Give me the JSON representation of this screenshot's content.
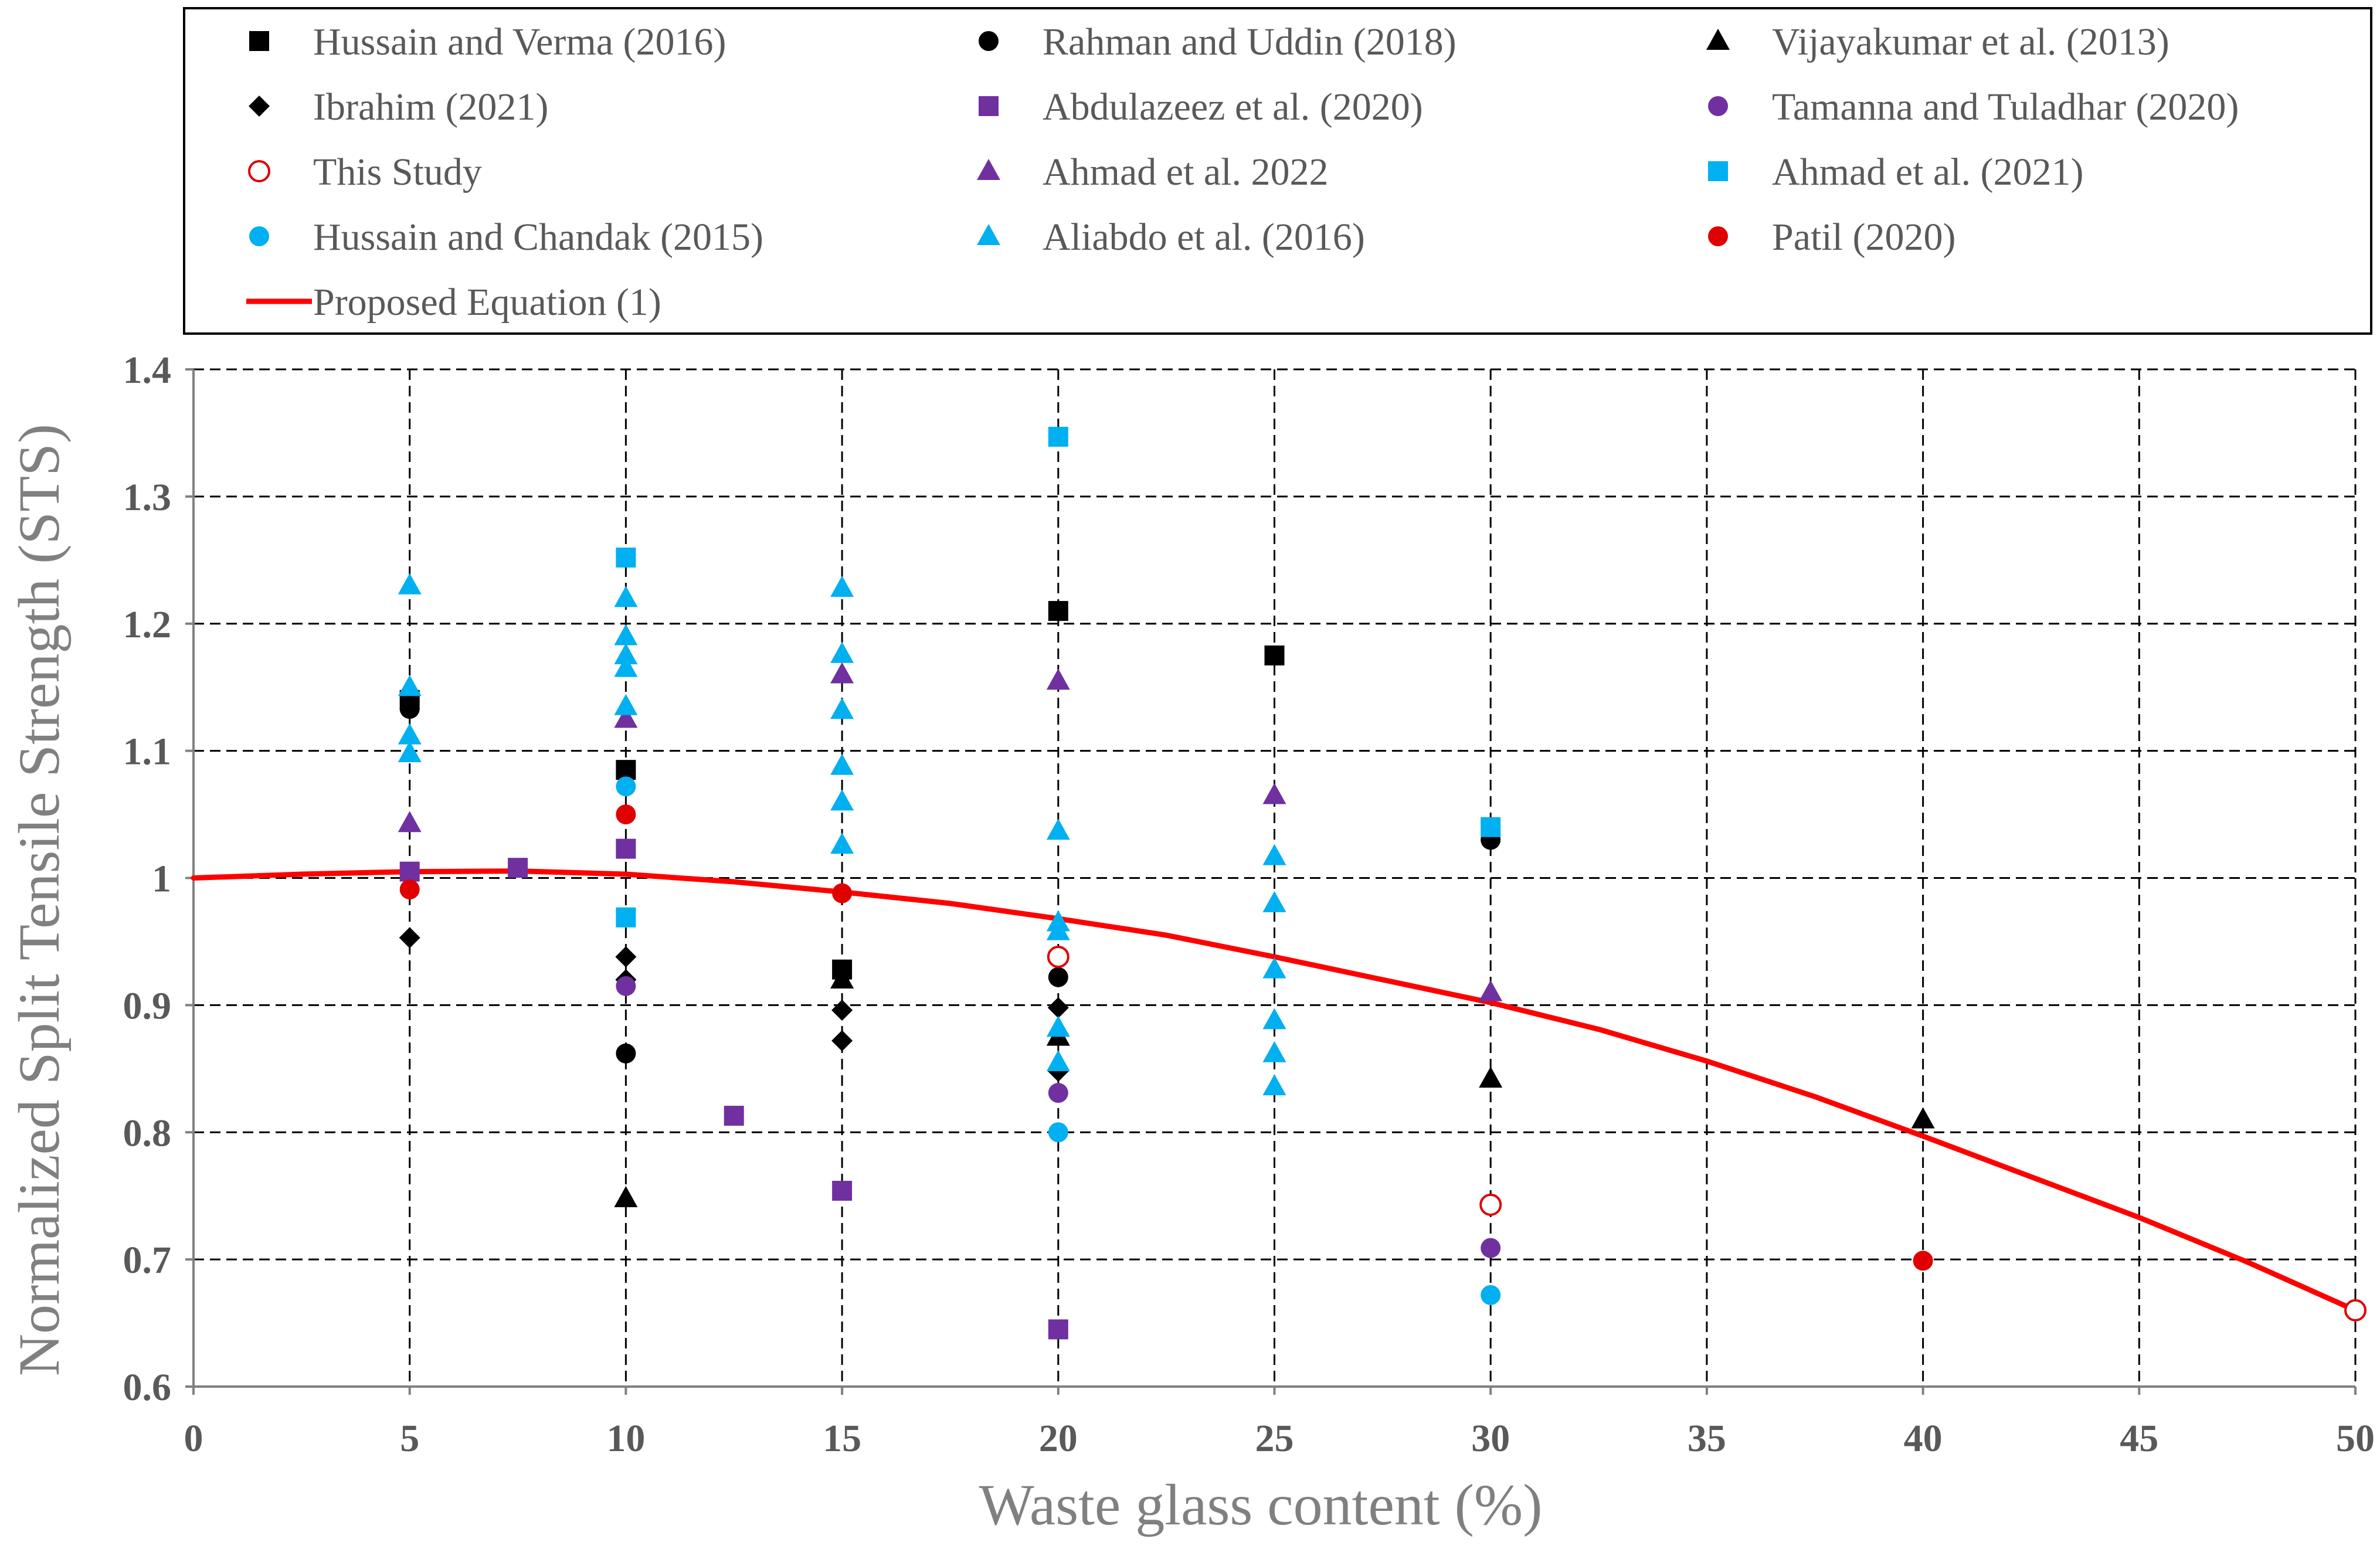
{
  "chart_data": {
    "type": "scatter",
    "title": "",
    "xlabel": "Waste glass content (%)",
    "ylabel": "Normalized Split Tensile Strength (STS)",
    "xlim": [
      0,
      50
    ],
    "ylim": [
      0.6,
      1.4
    ],
    "x_ticks": [
      "0",
      "5",
      "10",
      "15",
      "20",
      "25",
      "30",
      "35",
      "40",
      "45",
      "50"
    ],
    "y_ticks": [
      "0.6",
      "0.7",
      "0.8",
      "0.9",
      "1",
      "1.1",
      "1.2",
      "1.3",
      "1.4"
    ],
    "grid": true,
    "legend_position": "top",
    "series": [
      {
        "name": "Hussain and Verma (2016)",
        "marker": "square",
        "color": "#000000",
        "filled": true,
        "points": [
          [
            5,
            1.14
          ],
          [
            10,
            1.085
          ],
          [
            15,
            0.928
          ],
          [
            20,
            1.21
          ],
          [
            25,
            1.175
          ]
        ]
      },
      {
        "name": "Rahman and Uddin (2018)",
        "marker": "circle",
        "color": "#000000",
        "filled": true,
        "points": [
          [
            5,
            1.133
          ],
          [
            10,
            0.862
          ],
          [
            20,
            0.922
          ],
          [
            30,
            1.03
          ]
        ]
      },
      {
        "name": "Vijayakumar et al. (2013)",
        "marker": "triangle",
        "color": "#000000",
        "filled": true,
        "points": [
          [
            10,
            0.748
          ],
          [
            15,
            0.92
          ],
          [
            20,
            0.875
          ],
          [
            30,
            0.842
          ],
          [
            40,
            0.81
          ]
        ]
      },
      {
        "name": "Ibrahim (2021)",
        "marker": "diamond",
        "color": "#000000",
        "filled": true,
        "points": [
          [
            5,
            0.953
          ],
          [
            10,
            0.938
          ],
          [
            10,
            0.92
          ],
          [
            15,
            0.896
          ],
          [
            15,
            0.872
          ],
          [
            20,
            0.898
          ],
          [
            20,
            0.848
          ]
        ]
      },
      {
        "name": "Abdulazeez et al. (2020)",
        "marker": "square",
        "color": "#7030A0",
        "filled": true,
        "points": [
          [
            5,
            1.005
          ],
          [
            7.5,
            1.008
          ],
          [
            10,
            1.023
          ],
          [
            12.5,
            0.813
          ],
          [
            15,
            0.754
          ],
          [
            20,
            0.645
          ]
        ]
      },
      {
        "name": "Tamanna and Tuladhar (2020)",
        "marker": "circle",
        "color": "#7030A0",
        "filled": true,
        "points": [
          [
            10,
            0.915
          ],
          [
            20,
            0.831
          ],
          [
            30,
            0.709
          ]
        ]
      },
      {
        "name": "This Study",
        "marker": "circle",
        "color": "#E00000",
        "filled": false,
        "points": [
          [
            20,
            0.938
          ],
          [
            30,
            0.743
          ],
          [
            50,
            0.66
          ]
        ]
      },
      {
        "name": "Ahmad et al. 2022",
        "marker": "triangle",
        "color": "#7030A0",
        "filled": true,
        "points": [
          [
            5,
            1.043
          ],
          [
            10,
            1.125
          ],
          [
            15,
            1.16
          ],
          [
            20,
            1.155
          ],
          [
            25,
            1.065
          ],
          [
            30,
            0.91
          ]
        ]
      },
      {
        "name": "Ahmad et al. (2021)",
        "marker": "square",
        "color": "#00B0F0",
        "filled": true,
        "points": [
          [
            10,
            1.252
          ],
          [
            10,
            0.969
          ],
          [
            20,
            1.347
          ],
          [
            30,
            1.04
          ]
        ]
      },
      {
        "name": "Hussain and Chandak (2015)",
        "marker": "circle",
        "color": "#00B0F0",
        "filled": true,
        "points": [
          [
            10,
            1.072
          ],
          [
            20,
            0.8
          ],
          [
            30,
            0.672
          ]
        ]
      },
      {
        "name": "Aliabdo et al. (2016)",
        "marker": "triangle",
        "color": "#00B0F0",
        "filled": true,
        "points": [
          [
            5,
            1.23
          ],
          [
            5,
            1.15
          ],
          [
            5,
            1.112
          ],
          [
            5,
            1.098
          ],
          [
            10,
            1.22
          ],
          [
            10,
            1.19
          ],
          [
            10,
            1.175
          ],
          [
            10,
            1.165
          ],
          [
            10,
            1.135
          ],
          [
            15,
            1.228
          ],
          [
            15,
            1.176
          ],
          [
            15,
            1.132
          ],
          [
            15,
            1.088
          ],
          [
            15,
            1.06
          ],
          [
            15,
            1.026
          ],
          [
            20,
            1.037
          ],
          [
            20,
            0.965
          ],
          [
            20,
            0.958
          ],
          [
            20,
            0.882
          ],
          [
            20,
            0.855
          ],
          [
            25,
            1.017
          ],
          [
            25,
            0.98
          ],
          [
            25,
            0.928
          ],
          [
            25,
            0.888
          ],
          [
            25,
            0.862
          ],
          [
            25,
            0.836
          ]
        ]
      },
      {
        "name": "Patil (2020)",
        "marker": "circle",
        "color": "#E00000",
        "filled": true,
        "points": [
          [
            5,
            0.991
          ],
          [
            10,
            1.05
          ],
          [
            15,
            0.988
          ],
          [
            40,
            0.699
          ]
        ]
      }
    ],
    "line_series": {
      "name": "Proposed Equation (1)",
      "color": "#FF0000",
      "x": [
        0,
        2.5,
        5,
        7.5,
        10,
        12.5,
        15,
        17.5,
        20,
        22.5,
        25,
        27.5,
        30,
        32.5,
        35,
        37.5,
        40,
        42.5,
        45,
        47.5,
        50
      ],
      "y": [
        1.0,
        1.003,
        1.005,
        1.0055,
        1.003,
        0.997,
        0.989,
        0.98,
        0.968,
        0.955,
        0.938,
        0.92,
        0.902,
        0.881,
        0.856,
        0.828,
        0.797,
        0.765,
        0.733,
        0.698,
        0.66
      ]
    }
  }
}
